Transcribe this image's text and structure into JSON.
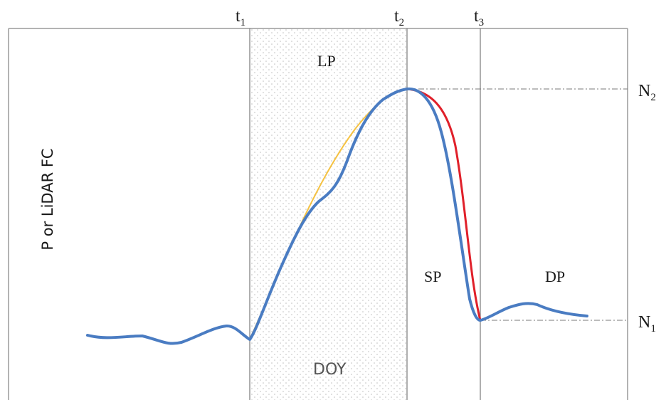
{
  "markers": {
    "t1": {
      "base": "t",
      "sub": "1"
    },
    "t2": {
      "base": "t",
      "sub": "2"
    },
    "t3": {
      "base": "t",
      "sub": "3"
    }
  },
  "levels": {
    "n1": {
      "base": "N",
      "sub": "1"
    },
    "n2": {
      "base": "N",
      "sub": "2"
    }
  },
  "phases": {
    "lp": "LP",
    "sp": "SP",
    "dp": "DP"
  },
  "axes": {
    "y_label": "P or LiDAR FC",
    "x_label": "DOY"
  },
  "colors": {
    "observed_curve": "#4a7cc2",
    "rise_fit": "#f5c242",
    "fall_fit": "#e0202a",
    "frame": "#9a9a9a",
    "reference_line": "#7a7a7a",
    "shading_dots": "#bdbdbd"
  }
}
